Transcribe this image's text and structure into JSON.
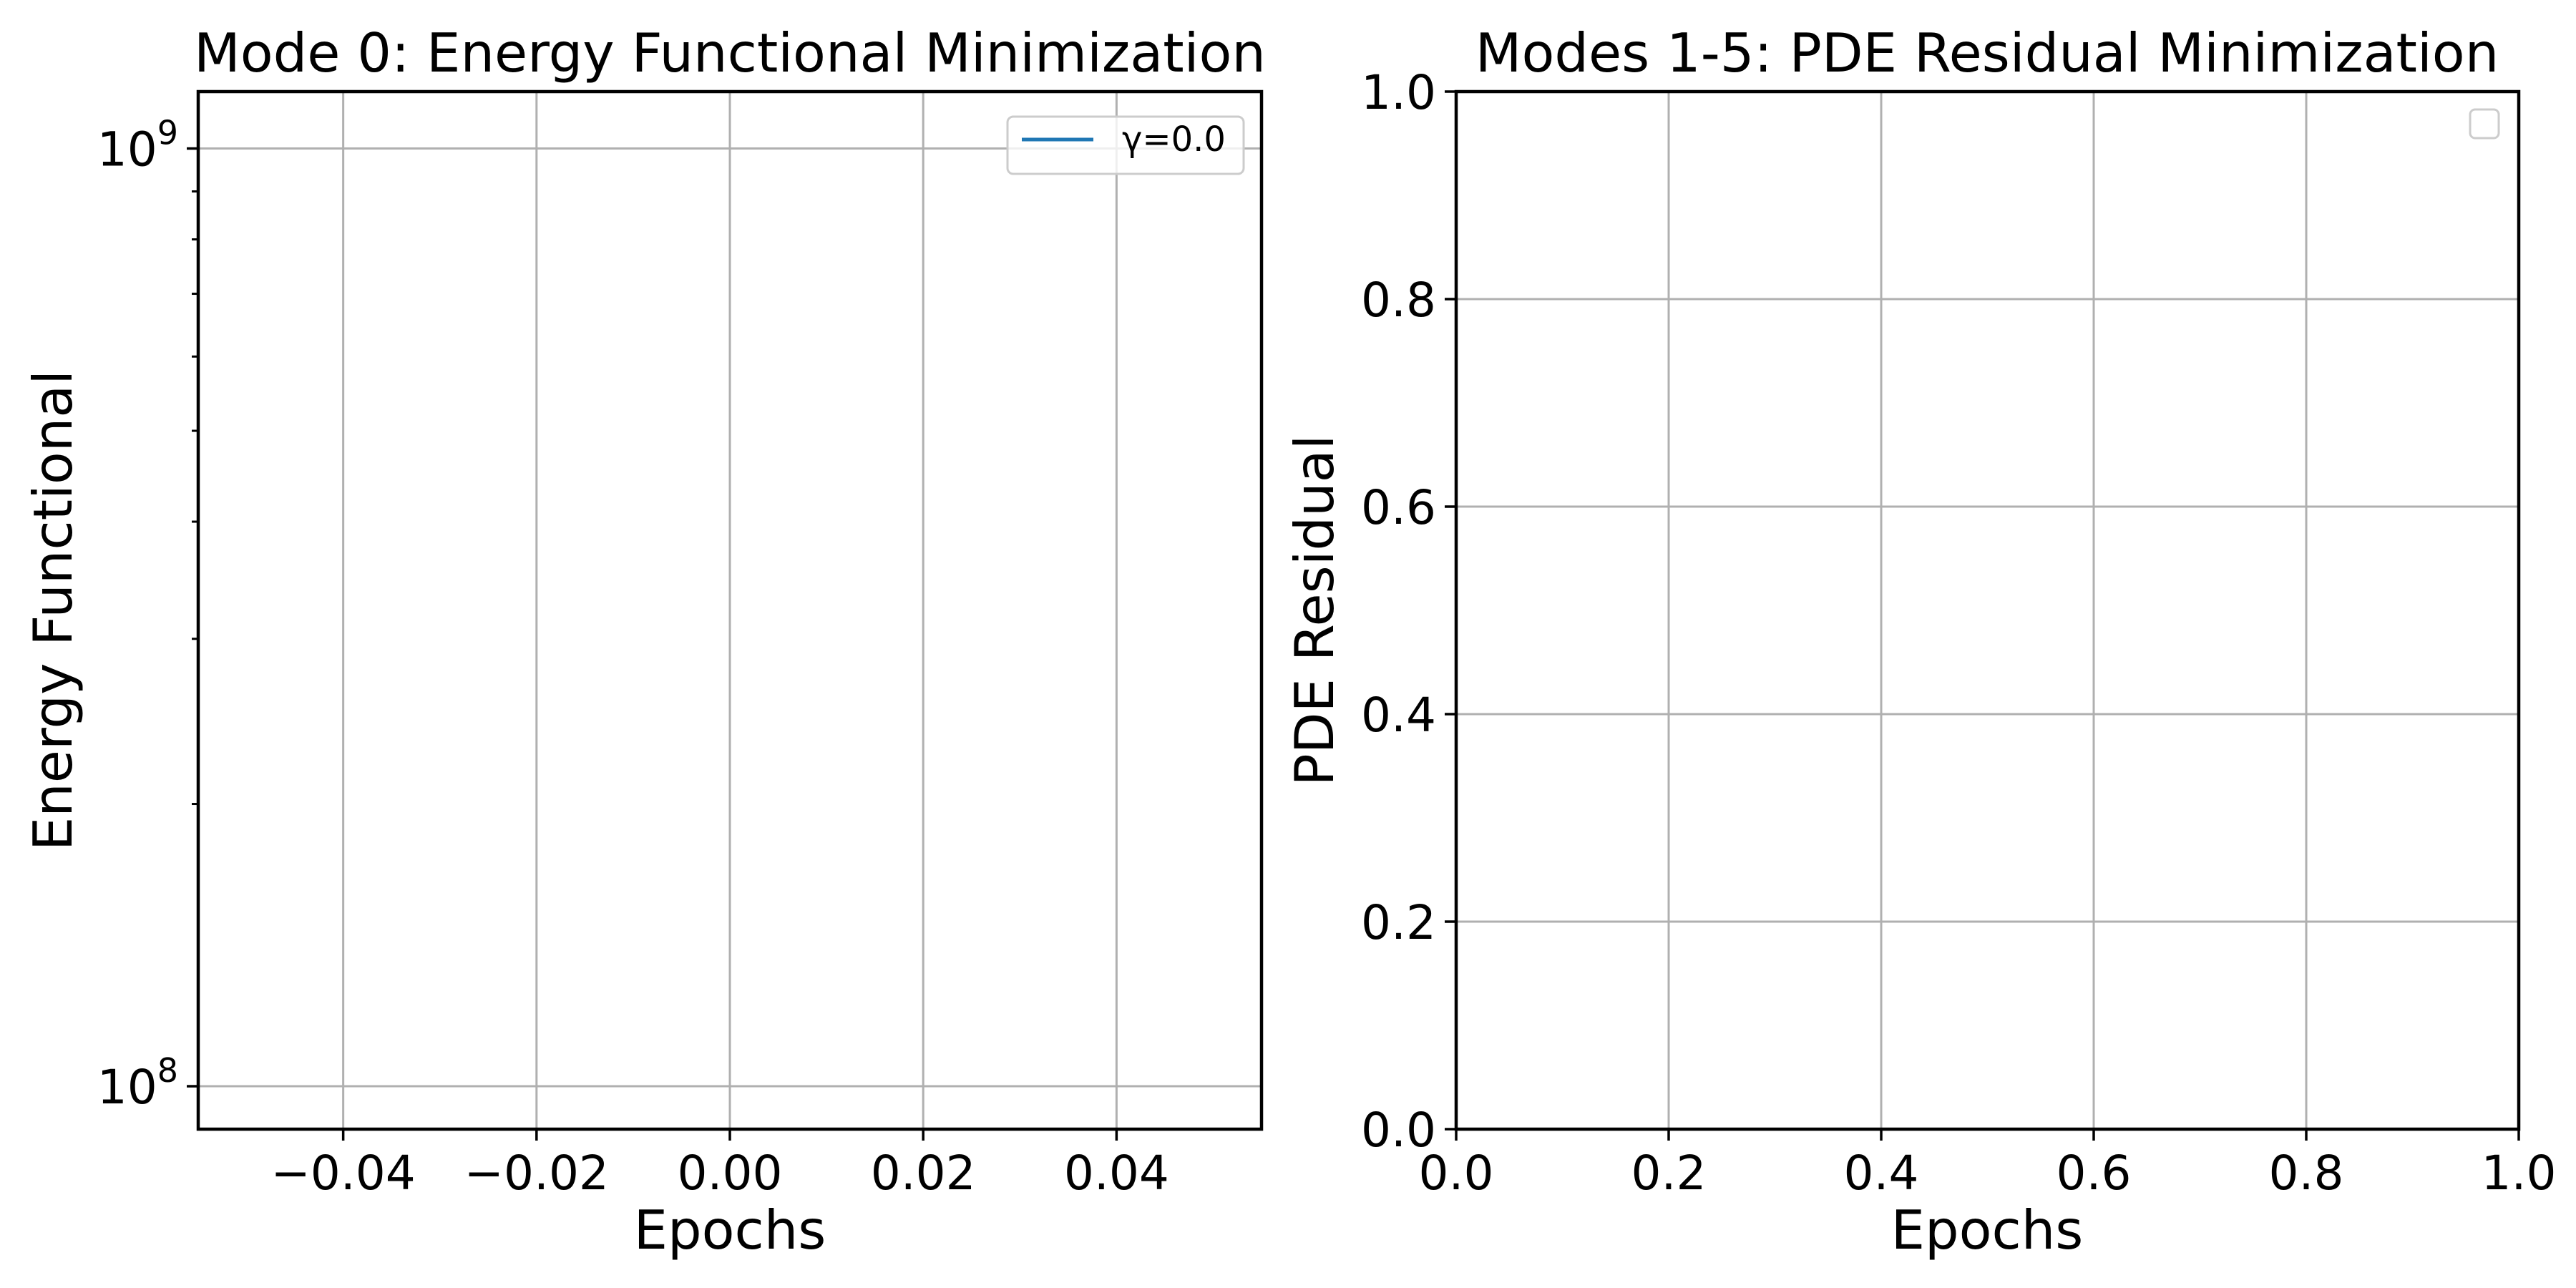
{
  "chart_data": [
    {
      "type": "line",
      "title": "Mode 0: Energy Functional Minimization",
      "xlabel": "Epochs",
      "ylabel": "Energy Functional",
      "xlim": [
        -0.055,
        0.055
      ],
      "x_ticks": [
        -0.04,
        -0.02,
        0.0,
        0.02,
        0.04
      ],
      "x_tick_labels": [
        "−0.04",
        "−0.02",
        "0.00",
        "0.02",
        "0.04"
      ],
      "y_scale": "log",
      "ylim": [
        90000000,
        1150000000
      ],
      "y_ticks": [
        100000000,
        1000000000
      ],
      "y_tick_labels": [
        {
          "base": "10",
          "exp": "8"
        },
        {
          "base": "10",
          "exp": "9"
        }
      ],
      "grid": true,
      "legend_position": "top-right",
      "series": [
        {
          "name": "γ=0.0",
          "x": [],
          "y": [],
          "color": "#1f77b4"
        }
      ]
    },
    {
      "type": "line",
      "title": "Modes 1-5: PDE Residual Minimization",
      "xlabel": "Epochs",
      "ylabel": "PDE Residual",
      "xlim": [
        0.0,
        1.0
      ],
      "ylim": [
        0.0,
        1.0
      ],
      "x_ticks": [
        0.0,
        0.2,
        0.4,
        0.6,
        0.8,
        1.0
      ],
      "x_tick_labels": [
        "0.0",
        "0.2",
        "0.4",
        "0.6",
        "0.8",
        "1.0"
      ],
      "y_ticks": [
        0.0,
        0.2,
        0.4,
        0.6,
        0.8,
        1.0
      ],
      "y_tick_labels": [
        "0.0",
        "0.2",
        "0.4",
        "0.6",
        "0.8",
        "1.0"
      ],
      "grid": true,
      "legend_position": "top-right",
      "series": []
    }
  ]
}
